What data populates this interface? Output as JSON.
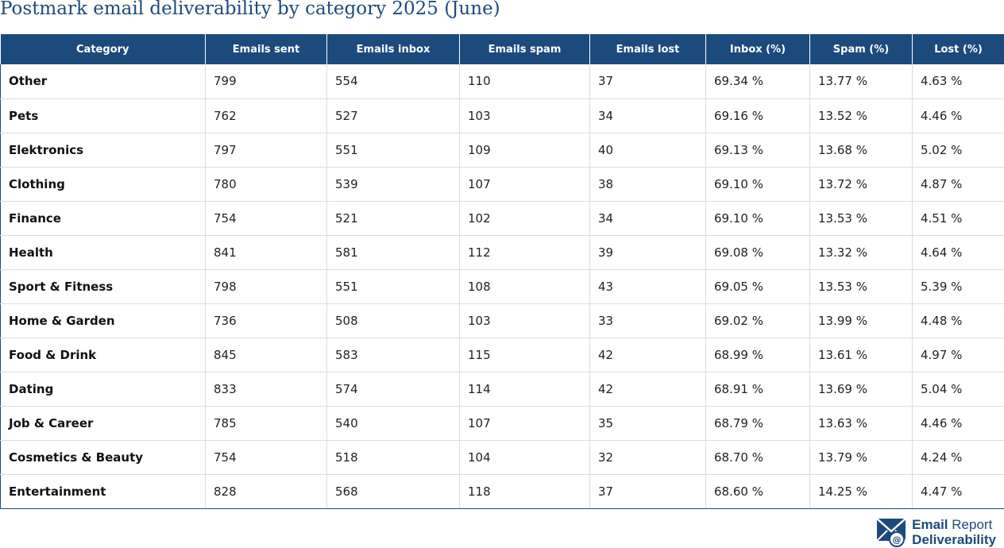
{
  "title": "Postmark email deliverability by category 2025 (June)",
  "colors": {
    "header_bg": "#1d4a7c",
    "title": "#1d4a7c",
    "grid": "#d9dde3"
  },
  "table": {
    "headers": [
      "Category",
      "Emails sent",
      "Emails inbox",
      "Emails spam",
      "Emails lost",
      "Inbox (%)",
      "Spam (%)",
      "Lost (%)"
    ],
    "rows": [
      [
        "Other",
        "799",
        "554",
        "110",
        "37",
        "69.34 %",
        "13.77 %",
        "4.63 %"
      ],
      [
        "Pets",
        "762",
        "527",
        "103",
        "34",
        "69.16 %",
        "13.52 %",
        "4.46 %"
      ],
      [
        "Elektronics",
        "797",
        "551",
        "109",
        "40",
        "69.13 %",
        "13.68 %",
        "5.02 %"
      ],
      [
        "Clothing",
        "780",
        "539",
        "107",
        "38",
        "69.10 %",
        "13.72 %",
        "4.87 %"
      ],
      [
        "Finance",
        "754",
        "521",
        "102",
        "34",
        "69.10 %",
        "13.53 %",
        "4.51 %"
      ],
      [
        "Health",
        "841",
        "581",
        "112",
        "39",
        "69.08 %",
        "13.32 %",
        "4.64 %"
      ],
      [
        "Sport & Fitness",
        "798",
        "551",
        "108",
        "43",
        "69.05 %",
        "13.53 %",
        "5.39 %"
      ],
      [
        "Home & Garden",
        "736",
        "508",
        "103",
        "33",
        "69.02 %",
        "13.99 %",
        "4.48 %"
      ],
      [
        "Food & Drink",
        "845",
        "583",
        "115",
        "42",
        "68.99 %",
        "13.61 %",
        "4.97 %"
      ],
      [
        "Dating",
        "833",
        "574",
        "114",
        "42",
        "68.91 %",
        "13.69 %",
        "5.04 %"
      ],
      [
        "Job & Career",
        "785",
        "540",
        "107",
        "35",
        "68.79 %",
        "13.63 %",
        "4.46 %"
      ],
      [
        "Cosmetics & Beauty",
        "754",
        "518",
        "104",
        "32",
        "68.70 %",
        "13.79 %",
        "4.24 %"
      ],
      [
        "Entertainment",
        "828",
        "568",
        "118",
        "37",
        "68.60 %",
        "14.25 %",
        "4.47 %"
      ]
    ]
  },
  "logo": {
    "icon": "envelope-at-icon",
    "line1_bold": "Email",
    "line1_regular": "Report",
    "line2": "Deliverability"
  }
}
